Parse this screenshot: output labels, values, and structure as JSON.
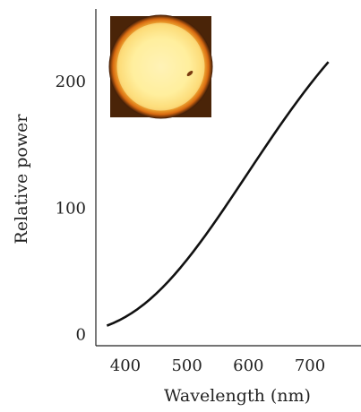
{
  "chart_data": {
    "type": "line",
    "x_label": "Wavelength (nm)",
    "y_label": "Relative power",
    "x": [
      370,
      380,
      390,
      400,
      410,
      420,
      430,
      440,
      450,
      460,
      470,
      480,
      490,
      500,
      510,
      520,
      530,
      540,
      550,
      560,
      570,
      580,
      590,
      600,
      610,
      620,
      630,
      640,
      650,
      660,
      670,
      680,
      690,
      700,
      710,
      720,
      730
    ],
    "values": [
      7.82,
      9.8,
      12.09,
      14.71,
      17.68,
      20.99,
      24.67,
      28.7,
      33.09,
      37.81,
      42.87,
      48.24,
      53.91,
      59.86,
      66.06,
      72.5,
      79.13,
      85.95,
      92.91,
      100,
      107.18,
      114.44,
      121.73,
      129.04,
      136.35,
      143.62,
      150.84,
      157.98,
      165.03,
      171.96,
      178.77,
      185.43,
      191.93,
      198.26,
      204.41,
      210.36,
      216.12
    ],
    "color": "#111111",
    "xlim": [
      352,
      783
    ],
    "ylim": [
      -8,
      258
    ],
    "xticks": [
      400,
      500,
      600,
      700
    ],
    "yticks": [
      0,
      100,
      200
    ]
  }
}
